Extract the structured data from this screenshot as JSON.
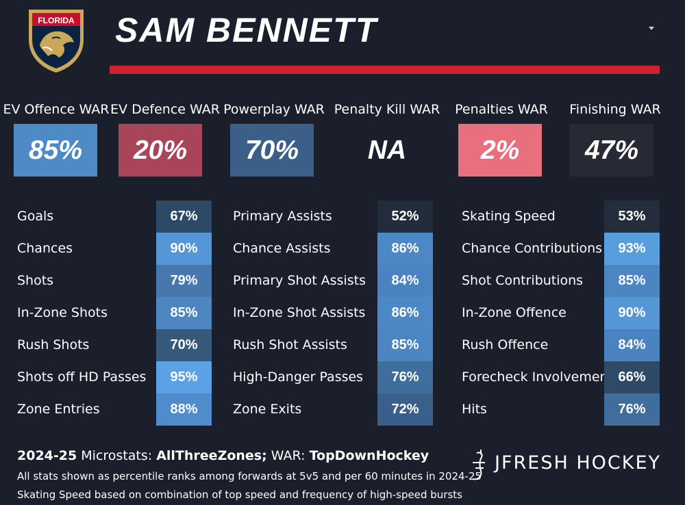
{
  "header": {
    "team_logo_text": "FLORIDA",
    "player_name": "SAM BENNETT",
    "dropdown_icon": "caret-down-icon",
    "accent_color": "#d1202f"
  },
  "war": [
    {
      "label": "EV Offence WAR",
      "value": "85%",
      "percentile": 85,
      "color": "#4e8bc6"
    },
    {
      "label": "EV Defence WAR",
      "value": "20%",
      "percentile": 20,
      "color": "#a94558"
    },
    {
      "label": "Powerplay WAR",
      "value": "70%",
      "percentile": 70,
      "color": "#3b5f86"
    },
    {
      "label": "Penalty Kill WAR",
      "value": "NA",
      "percentile": null,
      "color": "#1a1f2b"
    },
    {
      "label": "Penalties WAR",
      "value": "2%",
      "percentile": 2,
      "color": "#e8707e"
    },
    {
      "label": "Finishing WAR",
      "value": "47%",
      "percentile": 47,
      "color": "#272935"
    }
  ],
  "stat_columns": [
    [
      {
        "label": "Goals",
        "value": "67%",
        "color": "#2e4965"
      },
      {
        "label": "Chances",
        "value": "90%",
        "color": "#5596d6"
      },
      {
        "label": "Shots",
        "value": "79%",
        "color": "#4677ad"
      },
      {
        "label": "In-Zone Shots",
        "value": "85%",
        "color": "#4d86c1"
      },
      {
        "label": "Rush Shots",
        "value": "70%",
        "color": "#375979"
      },
      {
        "label": "Shots off HD Passes",
        "value": "95%",
        "color": "#5aa2e3"
      },
      {
        "label": "Zone Entries",
        "value": "88%",
        "color": "#4f8ccc"
      }
    ],
    [
      {
        "label": "Primary Assists",
        "value": "52%",
        "color": "#222c3b"
      },
      {
        "label": "Chance Assists",
        "value": "86%",
        "color": "#4d88c6"
      },
      {
        "label": "Primary Shot Assists",
        "value": "84%",
        "color": "#4a83bf"
      },
      {
        "label": "In-Zone Shot Assists",
        "value": "86%",
        "color": "#4d88c6"
      },
      {
        "label": "Rush Shot Assists",
        "value": "85%",
        "color": "#4b86c2"
      },
      {
        "label": "High-Danger Passes",
        "value": "76%",
        "color": "#3f6d9c"
      },
      {
        "label": "Zone Exits",
        "value": "72%",
        "color": "#39608a"
      }
    ],
    [
      {
        "label": "Skating Speed",
        "value": "53%",
        "color": "#232d3c"
      },
      {
        "label": "Chance Contributions",
        "value": "93%",
        "color": "#589ddc"
      },
      {
        "label": "Shot Contributions",
        "value": "85%",
        "color": "#4b86c2"
      },
      {
        "label": "In-Zone Offence",
        "value": "90%",
        "color": "#5596d6"
      },
      {
        "label": "Rush Offence",
        "value": "84%",
        "color": "#4a83bf"
      },
      {
        "label": "Forecheck Involvement",
        "value": "66%",
        "color": "#2f4a68"
      },
      {
        "label": "Hits",
        "value": "76%",
        "color": "#3f6d9c"
      }
    ]
  ],
  "footer": {
    "season": "2024-25",
    "microstats_label": "Microstats:",
    "microstats_source": "AllThreeZones;",
    "war_label": "WAR:",
    "war_source": "TopDownHockey",
    "note1": "All stats shown as percentile ranks among forwards at 5v5 and per 60 minutes in 2024-25",
    "note2": "Skating Speed based on combination of top speed and frequency of high-speed bursts",
    "brand": "JFRESH HOCKEY"
  },
  "chart_data": {
    "type": "table",
    "title": "SAM BENNETT",
    "war": {
      "categories": [
        "EV Offence WAR",
        "EV Defence WAR",
        "Powerplay WAR",
        "Penalty Kill WAR",
        "Penalties WAR",
        "Finishing WAR"
      ],
      "values": [
        85,
        20,
        70,
        null,
        2,
        47
      ]
    },
    "microstats": {
      "categories": [
        "Goals",
        "Chances",
        "Shots",
        "In-Zone Shots",
        "Rush Shots",
        "Shots off HD Passes",
        "Zone Entries",
        "Primary Assists",
        "Chance Assists",
        "Primary Shot Assists",
        "In-Zone Shot Assists",
        "Rush Shot Assists",
        "High-Danger Passes",
        "Zone Exits",
        "Skating Speed",
        "Chance Contributions",
        "Shot Contributions",
        "In-Zone Offence",
        "Rush Offence",
        "Forecheck Involvement",
        "Hits"
      ],
      "values": [
        67,
        90,
        79,
        85,
        70,
        95,
        88,
        52,
        86,
        84,
        86,
        85,
        76,
        72,
        53,
        93,
        85,
        90,
        84,
        66,
        76
      ]
    }
  }
}
